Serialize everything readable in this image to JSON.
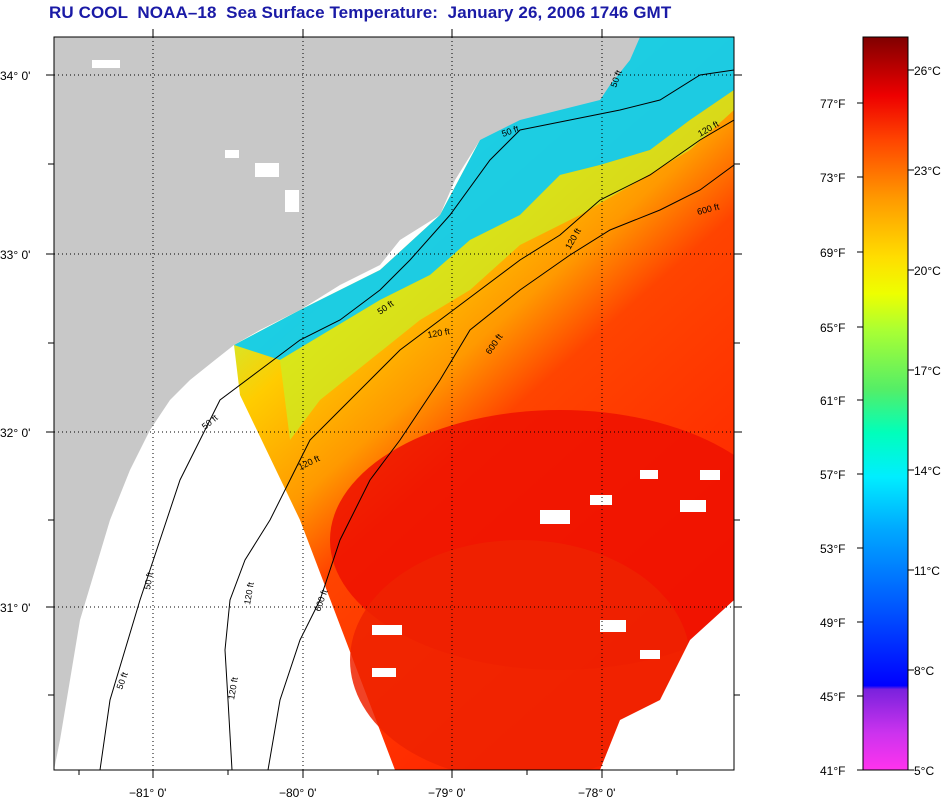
{
  "title": "RU COOL  NOAA–18  Sea Surface Temperature:  January 26, 2006 1746 GMT",
  "map": {
    "lat_labels": [
      "34° 0'",
      "33° 0'",
      "32° 0'",
      "31° 0'"
    ],
    "lon_labels": [
      "−81° 0'",
      "−80° 0'",
      "−79° 0'",
      "−78° 0'"
    ],
    "contour_labels": [
      "50 ft",
      "120 ft",
      "600 ft",
      "120 ft",
      "50 ft",
      "120 ft",
      "600 ft",
      "50 ft",
      "120 ft",
      "600 ft",
      "50 ft",
      "120 ft",
      "50 ft",
      "50 ft",
      "120 ft"
    ],
    "colors": {
      "land": "#c8c8c8",
      "water_nodata": "#ffffff",
      "frame": "#000000",
      "grid": "#000000"
    }
  },
  "colorbar": {
    "fahrenheit_labels": [
      "77°F",
      "73°F",
      "69°F",
      "65°F",
      "61°F",
      "57°F",
      "53°F",
      "49°F",
      "45°F",
      "41°F"
    ],
    "celsius_labels": [
      "26°C",
      "23°C",
      "20°C",
      "17°C",
      "14°C",
      "11°C",
      "8°C",
      "5°C"
    ],
    "scale_colors": [
      "#ff33ee",
      "#9922dd",
      "#0000ff",
      "#0077ff",
      "#00ddff",
      "#00ffcc",
      "#66ee66",
      "#ccff33",
      "#ffff00",
      "#ffcc00",
      "#ff8800",
      "#ff3300",
      "#dd0000",
      "#8b0000"
    ]
  }
}
